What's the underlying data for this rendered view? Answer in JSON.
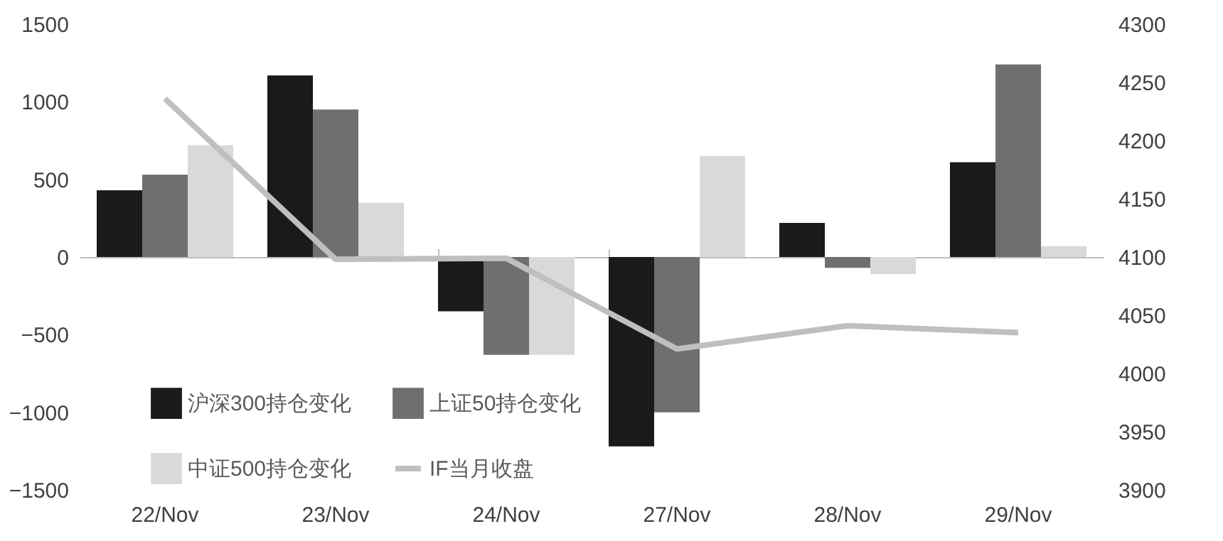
{
  "chart_data": {
    "type": "bar",
    "categories": [
      "22/Nov",
      "23/Nov",
      "24/Nov",
      "27/Nov",
      "28/Nov",
      "29/Nov"
    ],
    "series": [
      {
        "name": "沪深300持仓变化",
        "color": "#1a1a1a",
        "values": [
          430,
          1170,
          -350,
          -1220,
          220,
          610
        ]
      },
      {
        "name": "上证50持仓变化",
        "color": "#6f6f6f",
        "values": [
          530,
          950,
          -630,
          -1000,
          -70,
          1240
        ]
      },
      {
        "name": "中证500持仓变化",
        "color": "#d9d9d9",
        "values": [
          720,
          350,
          -630,
          650,
          -110,
          70
        ]
      },
      {
        "name": "IF当月收盘",
        "color": "#bfbfbf",
        "type": "line",
        "axis": "y2",
        "values": [
          4236,
          4098,
          4099,
          4021,
          4041,
          4035
        ]
      }
    ],
    "ylim": [
      -1500,
      1500
    ],
    "yticks": [
      -1500,
      -1000,
      -500,
      0,
      500,
      1000,
      1500
    ],
    "y2lim": [
      3900,
      4300
    ],
    "y2ticks": [
      3900,
      3950,
      4000,
      4050,
      4100,
      4150,
      4200,
      4250,
      4300
    ],
    "legend": "bottom left"
  }
}
